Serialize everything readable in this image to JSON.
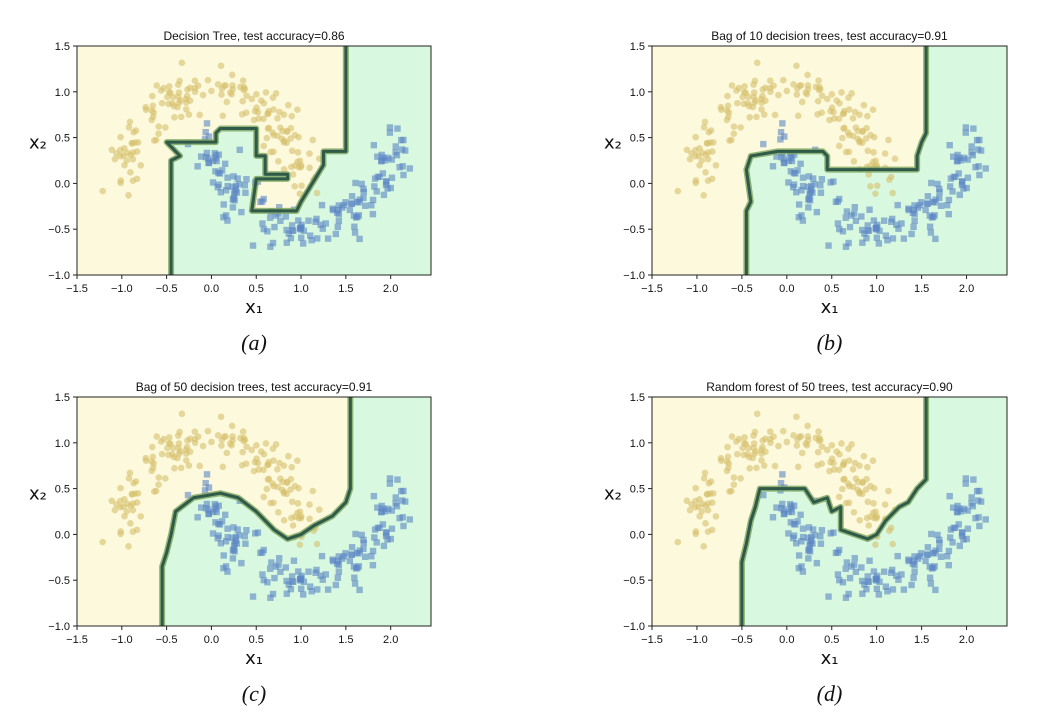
{
  "colors": {
    "class0_region": "#fdf9dc",
    "class1_region": "#d8f9df",
    "class0_points": "#d6bf6c",
    "class1_points": "#5b86c4",
    "boundary": "#2f5a4a",
    "boundary_glow": "#7aa35c"
  },
  "chart_data": [
    {
      "type": "scatter",
      "title": "Decision Tree, test accuracy=0.86",
      "subfigure_label": "(a)",
      "xlabel": "x₁",
      "ylabel": "x₂",
      "xlim": [
        -1.5,
        2.45
      ],
      "ylim": [
        -1.0,
        1.5
      ],
      "xticks": [
        "−1.5",
        "−1.0",
        "−0.5",
        "0.0",
        "0.5",
        "1.0",
        "1.5",
        "2.0"
      ],
      "yticks": [
        "1.5",
        "1.0",
        "0.5",
        "0.0",
        "−0.5",
        "−1.0"
      ],
      "grid": false,
      "series": [
        {
          "marker": "circle",
          "class": 0,
          "description_points": "moons dataset, upper moon"
        },
        {
          "marker": "square",
          "class": 1,
          "description_points": "moons dataset, lower moon"
        }
      ],
      "boundary": [
        [
          -0.45,
          -1.0
        ],
        [
          -0.45,
          0.25
        ],
        [
          -0.35,
          0.3
        ],
        [
          -0.5,
          0.45
        ],
        [
          0.05,
          0.45
        ],
        [
          0.05,
          0.55
        ],
        [
          0.1,
          0.6
        ],
        [
          0.5,
          0.6
        ],
        [
          0.5,
          0.3
        ],
        [
          0.6,
          0.3
        ],
        [
          0.6,
          0.1
        ],
        [
          0.85,
          0.1
        ],
        [
          0.85,
          0.05
        ],
        [
          0.5,
          0.05
        ],
        [
          0.45,
          -0.3
        ],
        [
          0.95,
          -0.3
        ],
        [
          1.0,
          -0.2
        ],
        [
          1.25,
          0.2
        ],
        [
          1.25,
          0.35
        ],
        [
          1.5,
          0.35
        ],
        [
          1.5,
          1.5
        ]
      ]
    },
    {
      "type": "scatter",
      "title": "Bag of 10 decision trees, test accuracy=0.91",
      "subfigure_label": "(b)",
      "xlabel": "x₁",
      "ylabel": "x₂",
      "xlim": [
        -1.5,
        2.45
      ],
      "ylim": [
        -1.0,
        1.5
      ],
      "xticks": [
        "−1.5",
        "−1.0",
        "−0.5",
        "0.0",
        "0.5",
        "1.0",
        "1.5",
        "2.0"
      ],
      "yticks": [
        "1.5",
        "1.0",
        "0.5",
        "0.0",
        "−0.5",
        "−1.0"
      ],
      "grid": false,
      "boundary": [
        [
          -0.45,
          -1.0
        ],
        [
          -0.45,
          -0.3
        ],
        [
          -0.4,
          -0.2
        ],
        [
          -0.45,
          0.15
        ],
        [
          -0.4,
          0.3
        ],
        [
          -0.1,
          0.35
        ],
        [
          0.4,
          0.35
        ],
        [
          0.45,
          0.3
        ],
        [
          0.45,
          0.15
        ],
        [
          0.9,
          0.15
        ],
        [
          1.45,
          0.15
        ],
        [
          1.45,
          0.3
        ],
        [
          1.5,
          0.45
        ],
        [
          1.55,
          0.55
        ],
        [
          1.55,
          1.5
        ]
      ]
    },
    {
      "type": "scatter",
      "title": "Bag of 50 decision trees, test accuracy=0.91",
      "subfigure_label": "(c)",
      "xlabel": "x₁",
      "ylabel": "x₂",
      "xlim": [
        -1.5,
        2.45
      ],
      "ylim": [
        -1.0,
        1.5
      ],
      "xticks": [
        "−1.5",
        "−1.0",
        "−0.5",
        "0.0",
        "0.5",
        "1.0",
        "1.5",
        "2.0"
      ],
      "yticks": [
        "1.5",
        "1.0",
        "0.5",
        "0.0",
        "−0.5",
        "−1.0"
      ],
      "grid": false,
      "boundary": [
        [
          -0.55,
          -1.0
        ],
        [
          -0.55,
          -0.35
        ],
        [
          -0.5,
          -0.2
        ],
        [
          -0.45,
          0.0
        ],
        [
          -0.4,
          0.25
        ],
        [
          -0.2,
          0.4
        ],
        [
          0.1,
          0.45
        ],
        [
          0.3,
          0.4
        ],
        [
          0.5,
          0.25
        ],
        [
          0.7,
          0.05
        ],
        [
          0.85,
          -0.05
        ],
        [
          1.0,
          0.0
        ],
        [
          1.15,
          0.1
        ],
        [
          1.35,
          0.2
        ],
        [
          1.5,
          0.35
        ],
        [
          1.55,
          0.5
        ],
        [
          1.55,
          1.5
        ]
      ]
    },
    {
      "type": "scatter",
      "title": "Random forest of 50 trees, test accuracy=0.90",
      "subfigure_label": "(d)",
      "xlabel": "x₁",
      "ylabel": "x₂",
      "xlim": [
        -1.5,
        2.45
      ],
      "ylim": [
        -1.0,
        1.5
      ],
      "xticks": [
        "−1.5",
        "−1.0",
        "−0.5",
        "0.0",
        "0.5",
        "1.0",
        "1.5",
        "2.0"
      ],
      "yticks": [
        "1.5",
        "1.0",
        "0.5",
        "0.0",
        "−0.5",
        "−1.0"
      ],
      "grid": false,
      "boundary": [
        [
          -0.5,
          -1.0
        ],
        [
          -0.5,
          -0.3
        ],
        [
          -0.45,
          -0.1
        ],
        [
          -0.4,
          0.15
        ],
        [
          -0.35,
          0.3
        ],
        [
          -0.3,
          0.5
        ],
        [
          0.2,
          0.5
        ],
        [
          0.3,
          0.35
        ],
        [
          0.45,
          0.4
        ],
        [
          0.5,
          0.25
        ],
        [
          0.6,
          0.3
        ],
        [
          0.6,
          0.05
        ],
        [
          0.75,
          0.0
        ],
        [
          0.9,
          -0.05
        ],
        [
          1.0,
          0.0
        ],
        [
          1.1,
          0.15
        ],
        [
          1.25,
          0.3
        ],
        [
          1.35,
          0.35
        ],
        [
          1.45,
          0.5
        ],
        [
          1.55,
          0.6
        ],
        [
          1.55,
          1.5
        ]
      ]
    }
  ]
}
